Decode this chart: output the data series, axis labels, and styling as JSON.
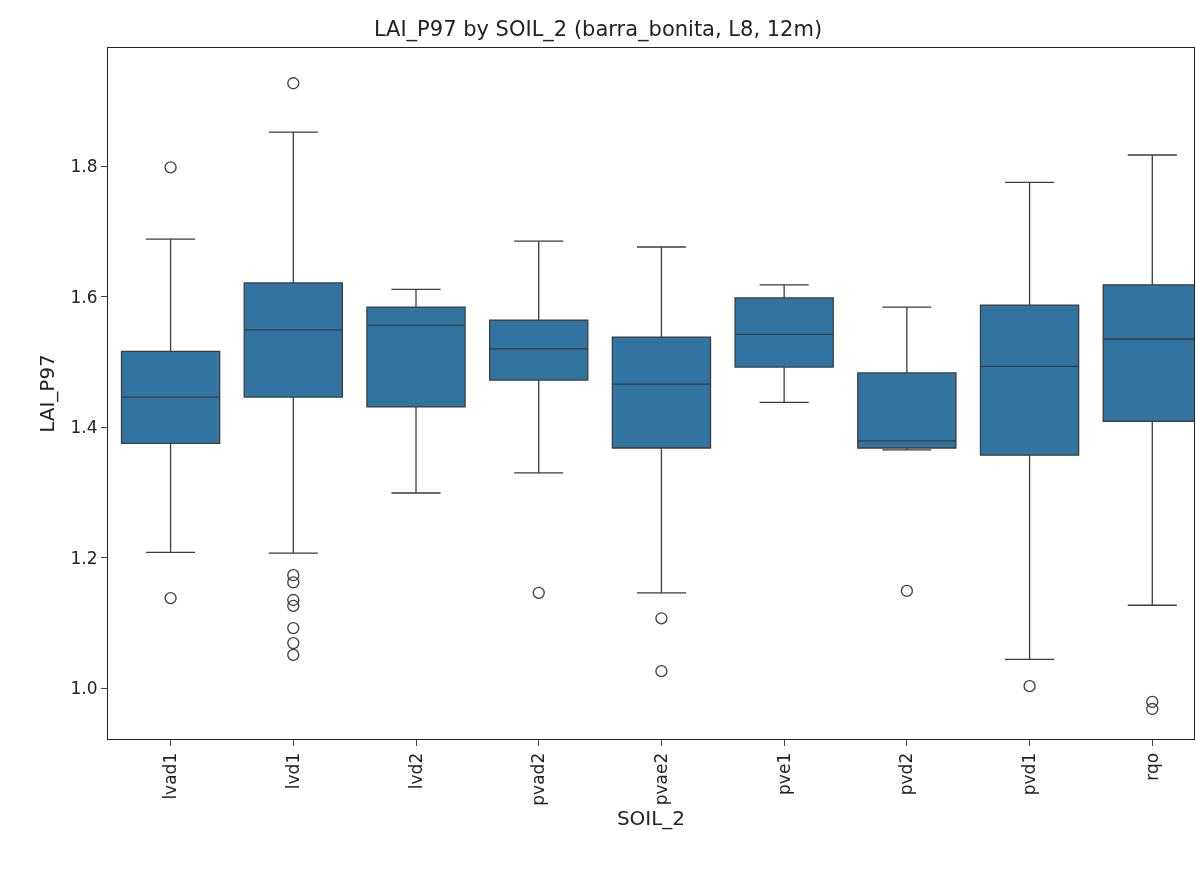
{
  "chart_data": {
    "type": "box",
    "title": "LAI_P97 by SOIL_2 (barra_bonita, L8, 12m)",
    "xlabel": "SOIL_2",
    "ylabel": "LAI_P97",
    "categories": [
      "lvad1",
      "lvd1",
      "lvd2",
      "pvad2",
      "pvae2",
      "pve1",
      "pvd2",
      "pvd1",
      "rqo"
    ],
    "series": [
      {
        "color": "#3274a1",
        "boxes": [
          {
            "low": 1.208,
            "q1": 1.375,
            "median": 1.446,
            "q3": 1.516,
            "high": 1.688,
            "outliers": [
              1.798,
              1.138
            ]
          },
          {
            "low": 1.207,
            "q1": 1.446,
            "median": 1.549,
            "q3": 1.621,
            "high": 1.852,
            "outliers": [
              1.927,
              1.173,
              1.162,
              1.135,
              1.126,
              1.092,
              1.069,
              1.051
            ]
          },
          {
            "low": 1.299,
            "q1": 1.431,
            "median": 1.556,
            "q3": 1.584,
            "high": 1.611
          },
          {
            "low": 1.33,
            "q1": 1.472,
            "median": 1.52,
            "q3": 1.564,
            "high": 1.685,
            "outliers": [
              1.146
            ]
          },
          {
            "low": 1.146,
            "q1": 1.368,
            "median": 1.466,
            "q3": 1.538,
            "high": 1.676,
            "outliers": [
              1.107,
              1.026
            ]
          },
          {
            "low": 1.438,
            "q1": 1.492,
            "median": 1.542,
            "q3": 1.598,
            "high": 1.618
          },
          {
            "low": 1.365,
            "q1": 1.368,
            "median": 1.379,
            "q3": 1.483,
            "high": 1.584,
            "outliers": [
              1.149
            ]
          },
          {
            "low": 1.044,
            "q1": 1.357,
            "median": 1.493,
            "q3": 1.587,
            "high": 1.775,
            "outliers": [
              1.003
            ]
          },
          {
            "low": 1.127,
            "q1": 1.409,
            "median": 1.535,
            "q3": 1.618,
            "high": 1.817,
            "outliers": [
              0.979,
              0.968
            ]
          }
        ]
      }
    ],
    "ylim": [
      0.922,
      1.981
    ],
    "yticks": [
      {
        "value": 1.0,
        "label": "1.0"
      },
      1.2,
      1.4,
      1.6,
      1.8
    ],
    "grid": false,
    "marker": "circle"
  }
}
